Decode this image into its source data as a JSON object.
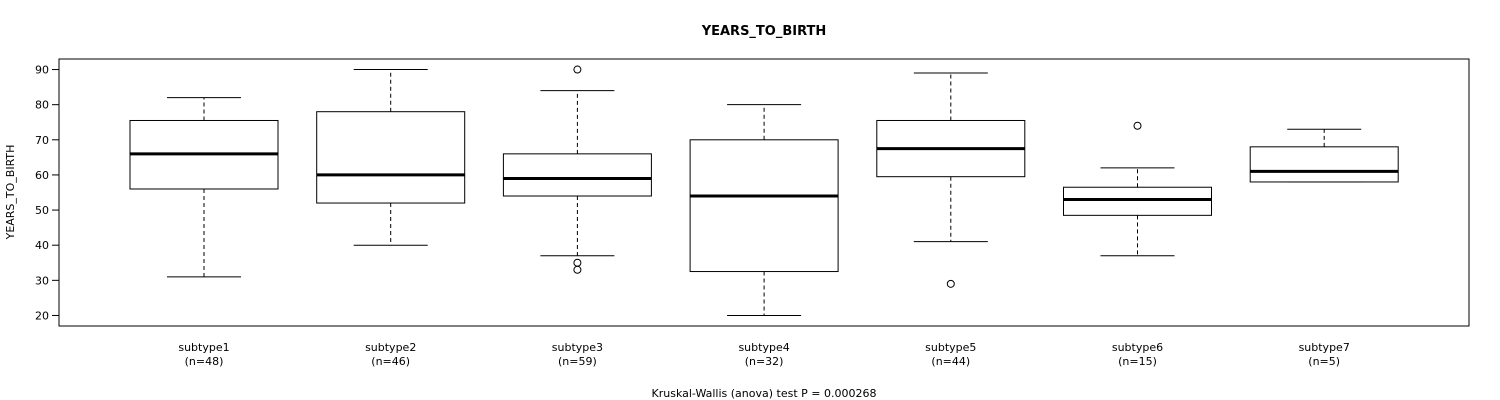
{
  "chart_data": {
    "type": "box",
    "title": "YEARS_TO_BIRTH",
    "ylabel": "YEARS_TO_BIRTH",
    "xlabel": "",
    "ylim": [
      17,
      93
    ],
    "yticks": [
      20,
      30,
      40,
      50,
      60,
      70,
      80,
      90
    ],
    "footnote": "Kruskal-Wallis (anova) test P = 0.000268",
    "grid": false,
    "groups": [
      {
        "label": "subtype1",
        "n": "(n=48)",
        "whisker_low": 31,
        "q1": 56,
        "median": 66,
        "q3": 75.5,
        "whisker_high": 82,
        "outliers": []
      },
      {
        "label": "subtype2",
        "n": "(n=46)",
        "whisker_low": 40,
        "q1": 52,
        "median": 60,
        "q3": 78,
        "whisker_high": 90,
        "outliers": []
      },
      {
        "label": "subtype3",
        "n": "(n=59)",
        "whisker_low": 37,
        "q1": 54,
        "median": 59,
        "q3": 66,
        "whisker_high": 84,
        "outliers": [
          90,
          35,
          33
        ]
      },
      {
        "label": "subtype4",
        "n": "(n=32)",
        "whisker_low": 20,
        "q1": 32.5,
        "median": 54,
        "q3": 70,
        "whisker_high": 80,
        "outliers": []
      },
      {
        "label": "subtype5",
        "n": "(n=44)",
        "whisker_low": 41,
        "q1": 59.5,
        "median": 67.5,
        "q3": 75.5,
        "whisker_high": 89,
        "outliers": [
          29
        ]
      },
      {
        "label": "subtype6",
        "n": "(n=15)",
        "whisker_low": 37,
        "q1": 48.5,
        "median": 53,
        "q3": 56.5,
        "whisker_high": 62,
        "outliers": [
          74
        ]
      },
      {
        "label": "subtype7",
        "n": "(n=5)",
        "whisker_low": 58,
        "q1": 58,
        "median": 61,
        "q3": 68,
        "whisker_high": 73,
        "outliers": []
      }
    ]
  }
}
